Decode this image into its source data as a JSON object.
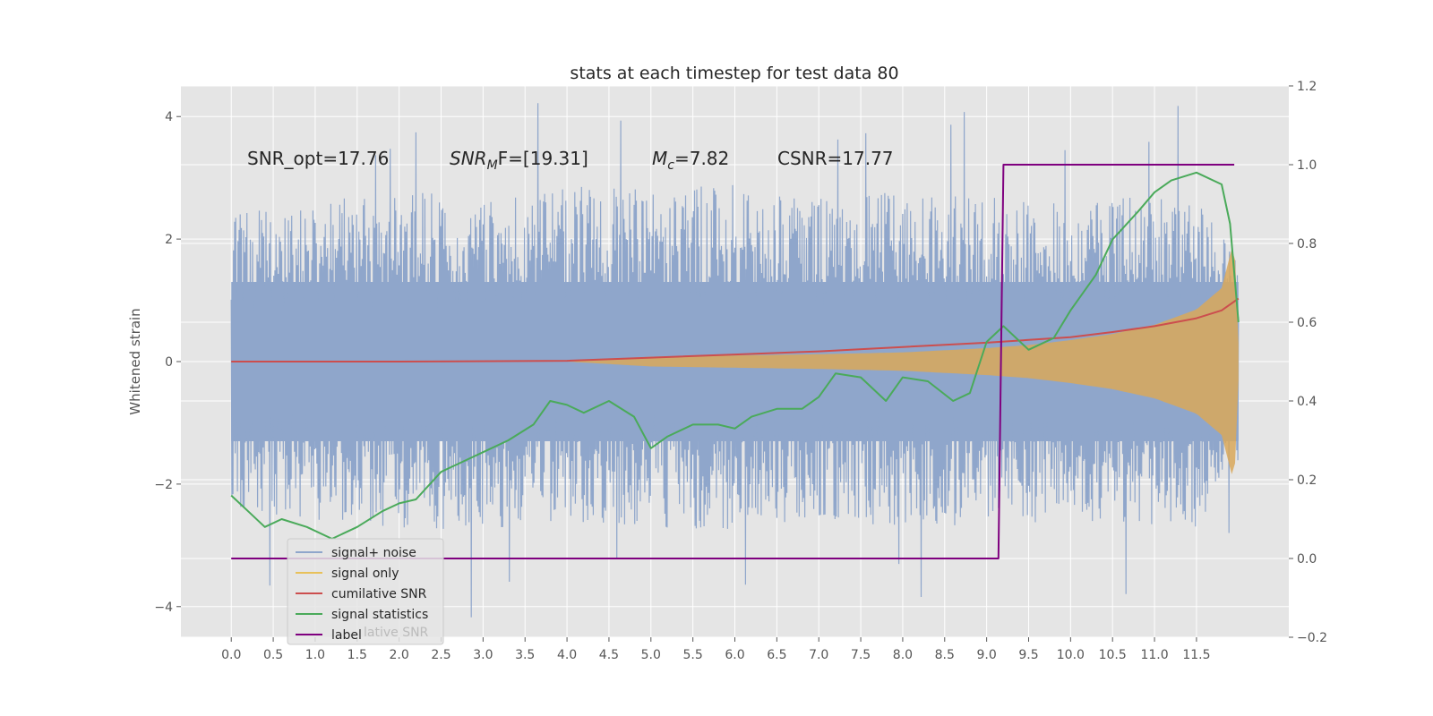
{
  "chart_data": {
    "type": "line",
    "title": "stats at each timestep for test data 80",
    "xlabel": "",
    "ylabel": "Whitened strain",
    "xlim": [
      -0.6,
      12.6
    ],
    "ylim": [
      -4.5,
      4.5
    ],
    "ylim_right": [
      -0.2,
      1.2
    ],
    "x_ticks": [
      "0.0",
      "0.5",
      "1.0",
      "1.5",
      "2.0",
      "2.5",
      "3.0",
      "3.5",
      "4.0",
      "4.5",
      "5.0",
      "5.5",
      "6.0",
      "6.5",
      "7.0",
      "7.5",
      "8.0",
      "8.5",
      "9.0",
      "9.5",
      "10.0",
      "10.5",
      "11.0",
      "11.5"
    ],
    "y_ticks": [
      4,
      2,
      0,
      -2,
      -4
    ],
    "y_tick_labels": [
      "4",
      "2",
      "0",
      "−2",
      "−4"
    ],
    "y_right_ticks": [
      "1.2",
      "1.0",
      "0.8",
      "0.6",
      "0.4",
      "0.2",
      "0.0",
      "−0.2"
    ],
    "grid": true,
    "legend_position": "lower-left",
    "annotations": {
      "snr_opt": "SNR_opt=17.76",
      "snr_mf_prefix": "SNR",
      "snr_mf_sub": "M",
      "snr_mf_rest": "F=[19.31]",
      "mc_prefix": "M",
      "mc_sub": "c",
      "mc_rest": "=7.82",
      "csnr": "CSNR=17.77"
    },
    "colors": {
      "background": "#e5e5e5",
      "grid": "#ffffff",
      "noise": "#8fa6cb",
      "signal": "#d9a85a",
      "cumulative": "#cc4e4e",
      "statistics": "#4aaa5a",
      "label": "#7f007f"
    },
    "series": [
      {
        "name": "signal+ noise",
        "axis": "left",
        "note_shape": "noise band",
        "envelope_x": [
          0.0,
          1.0,
          2.0,
          3.0,
          4.0,
          5.0,
          6.0,
          7.0,
          8.0,
          9.0,
          10.0,
          11.0,
          11.5,
          12.0
        ],
        "envelope_top": [
          2.4,
          2.6,
          2.8,
          2.7,
          2.9,
          2.8,
          2.9,
          2.7,
          2.8,
          2.7,
          2.6,
          2.8,
          2.9,
          1.6
        ],
        "envelope_bottom": [
          -2.4,
          -2.6,
          -2.7,
          -2.8,
          -2.6,
          -2.7,
          -2.8,
          -2.6,
          -2.7,
          -2.7,
          -2.6,
          -2.7,
          -2.8,
          -1.6
        ]
      },
      {
        "name": "signal only",
        "axis": "left",
        "x": [
          4.0,
          5.0,
          6.0,
          7.0,
          8.0,
          9.0,
          9.5,
          10.0,
          10.5,
          11.0,
          11.5,
          11.8,
          11.95,
          12.0
        ],
        "amplitude": [
          0.0,
          0.08,
          0.1,
          0.12,
          0.15,
          0.22,
          0.27,
          0.35,
          0.45,
          0.6,
          0.85,
          1.2,
          2.0,
          0.3
        ]
      },
      {
        "name": "cumilative SNR",
        "axis": "right",
        "x": [
          0.0,
          2.0,
          4.0,
          5.0,
          6.0,
          7.0,
          8.0,
          9.0,
          9.5,
          10.0,
          10.5,
          11.0,
          11.5,
          11.8,
          12.0
        ],
        "values": [
          0.5,
          0.5,
          0.502,
          0.51,
          0.518,
          0.526,
          0.537,
          0.548,
          0.555,
          0.562,
          0.575,
          0.59,
          0.61,
          0.63,
          0.66
        ]
      },
      {
        "name": "signal statistics",
        "axis": "right",
        "x": [
          0.0,
          0.2,
          0.4,
          0.6,
          0.9,
          1.2,
          1.5,
          1.8,
          2.0,
          2.2,
          2.5,
          2.8,
          3.0,
          3.3,
          3.6,
          3.8,
          4.0,
          4.2,
          4.5,
          4.8,
          5.0,
          5.2,
          5.5,
          5.8,
          6.0,
          6.2,
          6.5,
          6.8,
          7.0,
          7.2,
          7.5,
          7.8,
          8.0,
          8.3,
          8.6,
          8.8,
          9.0,
          9.2,
          9.5,
          9.8,
          10.0,
          10.3,
          10.5,
          10.8,
          11.0,
          11.2,
          11.5,
          11.8,
          11.9,
          12.0
        ],
        "values": [
          0.16,
          0.12,
          0.08,
          0.1,
          0.08,
          0.05,
          0.08,
          0.12,
          0.14,
          0.15,
          0.22,
          0.25,
          0.27,
          0.3,
          0.34,
          0.4,
          0.39,
          0.37,
          0.4,
          0.36,
          0.28,
          0.31,
          0.34,
          0.34,
          0.33,
          0.36,
          0.38,
          0.38,
          0.41,
          0.47,
          0.46,
          0.4,
          0.46,
          0.45,
          0.4,
          0.42,
          0.55,
          0.59,
          0.53,
          0.56,
          0.63,
          0.72,
          0.81,
          0.88,
          0.93,
          0.96,
          0.98,
          0.95,
          0.85,
          0.6
        ]
      },
      {
        "name": "label",
        "axis": "right",
        "x": [
          0.0,
          9.14,
          9.2,
          11.95
        ],
        "values": [
          0.0,
          0.0,
          1.0,
          1.0
        ]
      }
    ],
    "legend_entries": [
      "signal+ noise",
      "signal only",
      "cumilative SNR",
      "signal statistics",
      "label"
    ],
    "legend_overlap_text": "lative SNR"
  }
}
